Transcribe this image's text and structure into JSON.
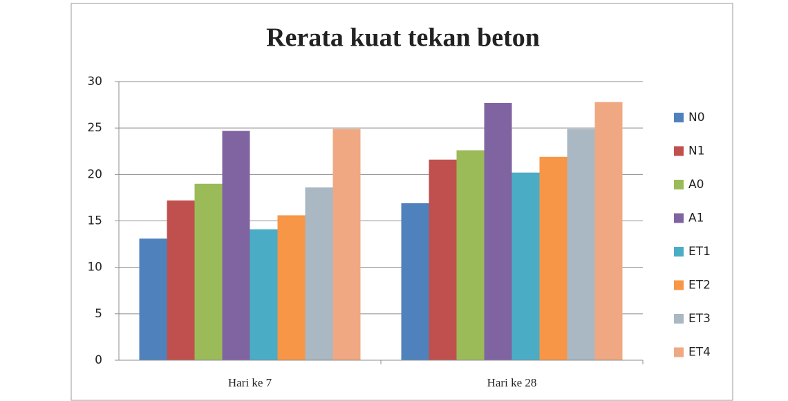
{
  "chart_data": {
    "type": "bar",
    "title": "Rerata kuat tekan beton",
    "categories": [
      "Hari ke 7",
      "Hari ke 28"
    ],
    "series": [
      {
        "name": "N0",
        "color": "#4f81bd",
        "values": [
          13.1,
          16.9
        ]
      },
      {
        "name": "N1",
        "color": "#c0504d",
        "values": [
          17.2,
          21.6
        ]
      },
      {
        "name": "A0",
        "color": "#9bbb59",
        "values": [
          19.0,
          22.6
        ]
      },
      {
        "name": "A1",
        "color": "#8064a2",
        "values": [
          24.7,
          27.7
        ]
      },
      {
        "name": "ET1",
        "color": "#4bacc6",
        "values": [
          14.1,
          20.2
        ]
      },
      {
        "name": "ET2",
        "color": "#f79646",
        "values": [
          15.6,
          21.9
        ]
      },
      {
        "name": "ET3",
        "color": "#a9b8c2",
        "values": [
          18.6,
          24.9
        ]
      },
      {
        "name": "ET4",
        "color": "#f0a882",
        "values": [
          24.9,
          27.8
        ]
      }
    ],
    "ylim": [
      0,
      30
    ],
    "yticks": [
      0,
      5,
      10,
      15,
      20,
      25,
      30
    ],
    "grid": true,
    "legend": "right"
  }
}
